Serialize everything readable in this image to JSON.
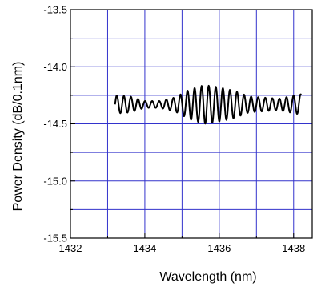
{
  "chart_data": {
    "type": "line",
    "title": "",
    "xlabel": "Wavelength (nm)",
    "ylabel": "Power Density (dB/0.1nm)",
    "xlim": [
      1432,
      1438.5
    ],
    "ylim": [
      -15.5,
      -13.5
    ],
    "x_ticks": [
      1432,
      1434,
      1436,
      1438
    ],
    "x_tick_labels": [
      "1432",
      "1434",
      "1436",
      "1438"
    ],
    "y_ticks": [
      -13.5,
      -14.0,
      -14.5,
      -15.0,
      -15.5
    ],
    "y_tick_labels": [
      "-13.5",
      "-14.0",
      "-14.5",
      "-15.0",
      "-15.5"
    ],
    "grid": true,
    "grid_color": "#3333cc",
    "series": [
      {
        "color": "#000000",
        "x_start": 1433.2,
        "x_end": 1438.2,
        "baseline": -14.33,
        "ripple_period_nm": 0.19,
        "ripple_amplitude_envelope": [
          [
            1433.2,
            0.08
          ],
          [
            1433.6,
            0.07
          ],
          [
            1434.0,
            0.03
          ],
          [
            1434.4,
            0.03
          ],
          [
            1434.8,
            0.06
          ],
          [
            1435.2,
            0.13
          ],
          [
            1435.6,
            0.17
          ],
          [
            1436.0,
            0.15
          ],
          [
            1436.4,
            0.12
          ],
          [
            1436.8,
            0.07
          ],
          [
            1437.2,
            0.06
          ],
          [
            1437.6,
            0.05
          ],
          [
            1438.2,
            0.09
          ]
        ]
      }
    ]
  }
}
